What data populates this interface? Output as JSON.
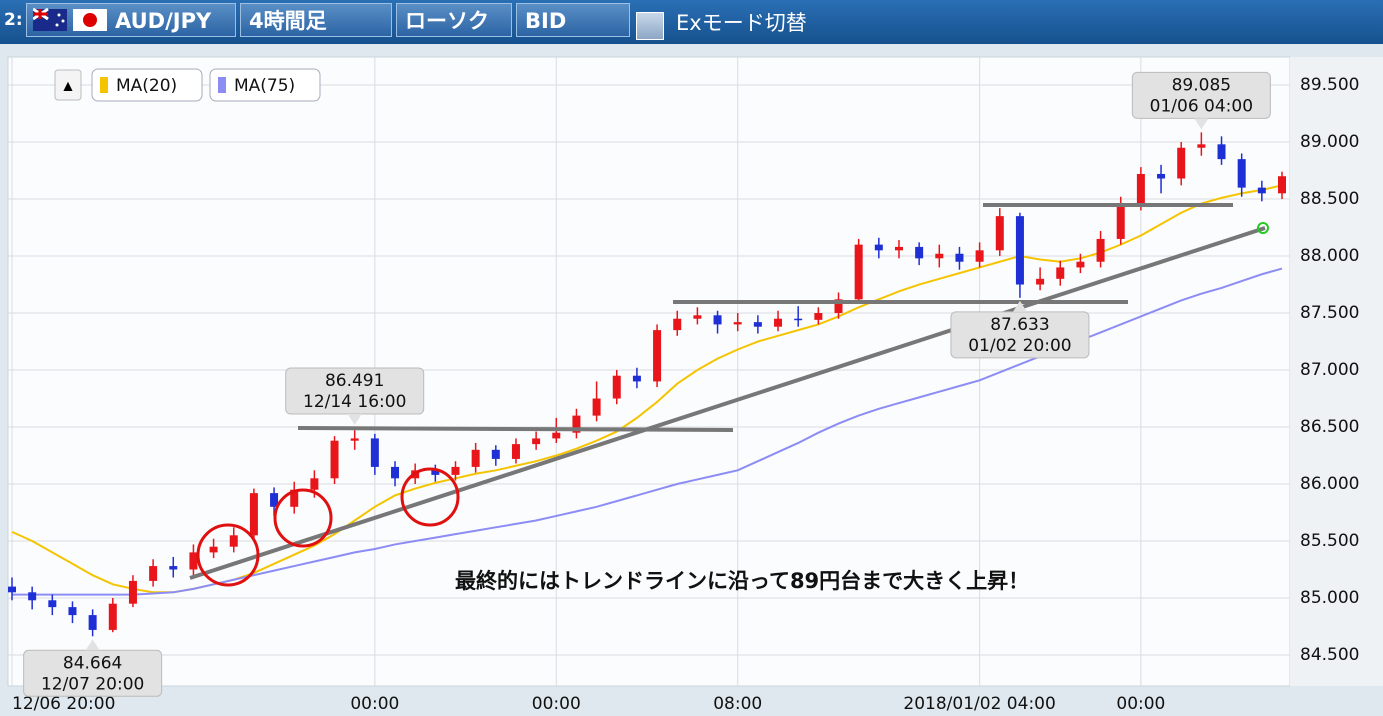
{
  "header": {
    "index": "2:",
    "pair": "AUD/JPY",
    "timeframe": "4時間足",
    "chart_style": "ローソク",
    "price_type": "BID",
    "mode_toggle": "Exモード切替"
  },
  "chart_data": {
    "type": "candlestick",
    "legend_toggle": "▲",
    "up_color": "#e8161b",
    "down_color": "#1f2fd6",
    "categories": [
      "12/06 20:00",
      null,
      null,
      null,
      null,
      null,
      null,
      null,
      null,
      null,
      null,
      null,
      null,
      null,
      null,
      null,
      null,
      null,
      "00:00",
      null,
      null,
      null,
      null,
      null,
      null,
      null,
      null,
      "00:00",
      null,
      null,
      null,
      null,
      null,
      null,
      null,
      null,
      "08:00",
      null,
      null,
      null,
      null,
      null,
      null,
      null,
      null,
      null,
      null,
      null,
      "2018/01/02 04:00",
      null,
      null,
      null,
      null,
      null,
      null,
      null,
      "00:00",
      null,
      null,
      null,
      null,
      null,
      null,
      null
    ],
    "open": [
      85.1,
      85.05,
      84.98,
      84.92,
      84.85,
      84.72,
      84.95,
      85.15,
      85.28,
      85.25,
      85.4,
      85.45,
      85.55,
      85.92,
      85.8,
      85.95,
      86.05,
      86.38,
      86.4,
      86.15,
      86.05,
      86.12,
      86.08,
      86.15,
      86.3,
      86.22,
      86.35,
      86.4,
      86.45,
      86.6,
      86.75,
      86.95,
      86.9,
      87.35,
      87.45,
      87.48,
      87.4,
      87.42,
      87.38,
      87.45,
      87.44,
      87.5,
      87.62,
      88.1,
      88.05,
      88.08,
      87.98,
      88.02,
      87.95,
      88.05,
      88.35,
      87.75,
      87.8,
      87.9,
      87.95,
      88.15,
      88.45,
      88.72,
      88.68,
      88.95,
      88.98,
      88.85,
      88.6,
      88.55
    ],
    "high": [
      85.18,
      85.1,
      85.03,
      84.97,
      84.9,
      85.0,
      85.2,
      85.34,
      85.36,
      85.47,
      85.52,
      85.62,
      85.96,
      85.97,
      86.02,
      86.12,
      86.42,
      86.491,
      86.44,
      86.2,
      86.18,
      86.17,
      86.2,
      86.36,
      86.34,
      86.4,
      86.46,
      86.58,
      86.66,
      86.9,
      87.0,
      87.02,
      87.4,
      87.52,
      87.55,
      87.52,
      87.5,
      87.48,
      87.52,
      87.56,
      87.55,
      87.68,
      88.15,
      88.16,
      88.14,
      88.12,
      88.1,
      88.08,
      88.12,
      88.42,
      88.38,
      87.9,
      87.96,
      88.02,
      88.22,
      88.52,
      88.78,
      88.8,
      89.0,
      89.085,
      89.05,
      88.9,
      88.66,
      88.74
    ],
    "low": [
      84.98,
      84.9,
      84.85,
      84.78,
      84.664,
      84.7,
      84.92,
      85.1,
      85.18,
      85.2,
      85.35,
      85.4,
      85.5,
      85.72,
      85.74,
      85.88,
      86.0,
      86.3,
      86.08,
      85.98,
      86.0,
      86.02,
      86.03,
      86.1,
      86.16,
      86.18,
      86.3,
      86.36,
      86.4,
      86.55,
      86.7,
      86.84,
      86.85,
      87.3,
      87.4,
      87.32,
      87.34,
      87.32,
      87.34,
      87.38,
      87.4,
      87.45,
      87.58,
      87.98,
      87.98,
      87.92,
      87.9,
      87.88,
      87.9,
      88.0,
      87.633,
      87.7,
      87.74,
      87.85,
      87.9,
      88.1,
      88.4,
      88.55,
      88.62,
      88.88,
      88.8,
      88.52,
      88.48,
      88.5
    ],
    "close": [
      85.05,
      84.98,
      84.92,
      84.85,
      84.72,
      84.95,
      85.15,
      85.28,
      85.25,
      85.4,
      85.45,
      85.55,
      85.92,
      85.8,
      85.95,
      86.05,
      86.38,
      86.4,
      86.15,
      86.05,
      86.12,
      86.08,
      86.15,
      86.3,
      86.22,
      86.35,
      86.4,
      86.45,
      86.6,
      86.75,
      86.95,
      86.9,
      87.35,
      87.45,
      87.48,
      87.4,
      87.42,
      87.38,
      87.45,
      87.44,
      87.5,
      87.62,
      88.1,
      88.05,
      88.08,
      87.98,
      88.02,
      87.95,
      88.05,
      88.35,
      87.75,
      87.8,
      87.9,
      87.95,
      88.15,
      88.45,
      88.72,
      88.68,
      88.95,
      88.98,
      88.85,
      88.6,
      88.55,
      88.7
    ],
    "series": [
      {
        "name": "MA(20)",
        "color": "#f5c400",
        "values": [
          85.58,
          85.5,
          85.4,
          85.3,
          85.2,
          85.12,
          85.08,
          85.05,
          85.05,
          85.08,
          85.12,
          85.16,
          85.22,
          85.3,
          85.38,
          85.46,
          85.56,
          85.68,
          85.8,
          85.9,
          85.96,
          86.01,
          86.05,
          86.09,
          86.12,
          86.16,
          86.2,
          86.25,
          86.31,
          86.38,
          86.46,
          86.58,
          86.72,
          86.88,
          87.0,
          87.1,
          87.18,
          87.25,
          87.3,
          87.35,
          87.4,
          87.47,
          87.55,
          87.62,
          87.69,
          87.75,
          87.8,
          87.85,
          87.9,
          87.95,
          88.0,
          87.97,
          87.95,
          87.98,
          88.03,
          88.1,
          88.18,
          88.28,
          88.38,
          88.46,
          88.51,
          88.55,
          88.58,
          88.62
        ]
      },
      {
        "name": "MA(75)",
        "color": "#8c8cf5",
        "values": [
          85.03,
          85.03,
          85.03,
          85.03,
          85.03,
          85.03,
          85.03,
          85.04,
          85.05,
          85.08,
          85.12,
          85.16,
          85.2,
          85.24,
          85.28,
          85.32,
          85.36,
          85.4,
          85.43,
          85.47,
          85.5,
          85.53,
          85.56,
          85.59,
          85.62,
          85.65,
          85.68,
          85.72,
          85.76,
          85.8,
          85.85,
          85.9,
          85.95,
          86.0,
          86.04,
          86.08,
          86.12,
          86.2,
          86.28,
          86.36,
          86.45,
          86.53,
          86.6,
          86.66,
          86.71,
          86.76,
          86.81,
          86.86,
          86.91,
          86.98,
          87.05,
          87.12,
          87.19,
          87.26,
          87.33,
          87.4,
          87.47,
          87.54,
          87.61,
          87.67,
          87.72,
          87.78,
          87.84,
          87.89
        ]
      }
    ],
    "ylim": [
      84.228,
      89.746
    ],
    "yticks": [
      {
        "value": 84.5,
        "label": "84.500"
      },
      {
        "value": 85,
        "label": "85.000"
      },
      {
        "value": 85.5,
        "label": "85.500"
      },
      {
        "value": 86,
        "label": "86.000"
      },
      {
        "value": 86.5,
        "label": "86.500"
      },
      {
        "value": 87,
        "label": "87.000"
      },
      {
        "value": 87.5,
        "label": "87.500"
      },
      {
        "value": 88,
        "label": "88.000"
      },
      {
        "value": 88.5,
        "label": "88.500"
      },
      {
        "value": 89,
        "label": "89.000"
      },
      {
        "value": 89.5,
        "label": "89.500"
      }
    ],
    "grid": true,
    "callouts": [
      {
        "value": 84.664,
        "time": "12/07 20:00",
        "kind": "low"
      },
      {
        "value": 86.491,
        "time": "12/14 16:00",
        "kind": "high"
      },
      {
        "value": 87.633,
        "time": "01/02 20:00",
        "kind": "low"
      },
      {
        "value": 89.085,
        "time": "01/06 04:00",
        "kind": "high"
      }
    ],
    "note": "最終的にはトレンドラインに沿って89円台まで大きく上昇！"
  }
}
